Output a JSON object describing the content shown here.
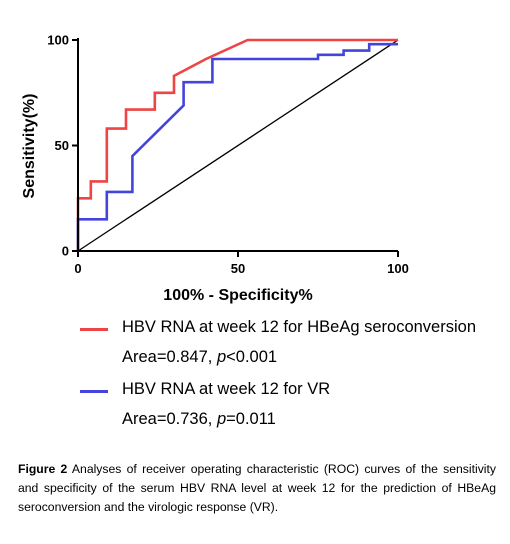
{
  "chart_data": {
    "type": "line",
    "xlabel": "100% - Specificity%",
    "ylabel": "Sensitivity(%)",
    "xlim": [
      0,
      100
    ],
    "ylim": [
      0,
      100
    ],
    "x_ticks": [
      "0",
      "50",
      "100"
    ],
    "y_ticks": [
      "0",
      "50",
      "100"
    ],
    "reference_line": [
      [
        0,
        0
      ],
      [
        100,
        100
      ]
    ],
    "series": [
      {
        "name": "HBV RNA at week 12 for HBeAg seroconversion",
        "stat_prefix": "Area=0.847, ",
        "stat_p": "p",
        "stat_suffix": "<0.001",
        "color": "#ee4444",
        "points": [
          [
            0,
            0
          ],
          [
            0,
            25
          ],
          [
            4,
            25
          ],
          [
            4,
            33
          ],
          [
            9,
            33
          ],
          [
            9,
            58
          ],
          [
            15,
            58
          ],
          [
            15,
            67
          ],
          [
            24,
            67
          ],
          [
            24,
            75
          ],
          [
            30,
            75
          ],
          [
            30,
            83
          ],
          [
            40,
            91
          ],
          [
            53,
            100
          ],
          [
            100,
            100
          ]
        ]
      },
      {
        "name": "HBV RNA at week 12 for VR",
        "stat_prefix": "Area=0.736, ",
        "stat_p": "p",
        "stat_suffix": "=0.011",
        "color": "#4444dd",
        "points": [
          [
            0,
            0
          ],
          [
            0,
            15
          ],
          [
            9,
            15
          ],
          [
            9,
            28
          ],
          [
            17,
            28
          ],
          [
            17,
            45
          ],
          [
            33,
            69
          ],
          [
            33,
            80
          ],
          [
            42,
            80
          ],
          [
            42,
            91
          ],
          [
            75,
            91
          ],
          [
            75,
            93
          ],
          [
            83,
            93
          ],
          [
            83,
            95
          ],
          [
            91,
            95
          ],
          [
            91,
            98
          ],
          [
            100,
            98
          ]
        ]
      }
    ]
  },
  "caption": {
    "label": "Figure 2",
    "text": "Analyses of receiver operating characteristic (ROC) curves of the sensitivity and specificity of the serum HBV RNA level at week 12 for the prediction of HBeAg seroconversion and the virologic response (VR)."
  }
}
